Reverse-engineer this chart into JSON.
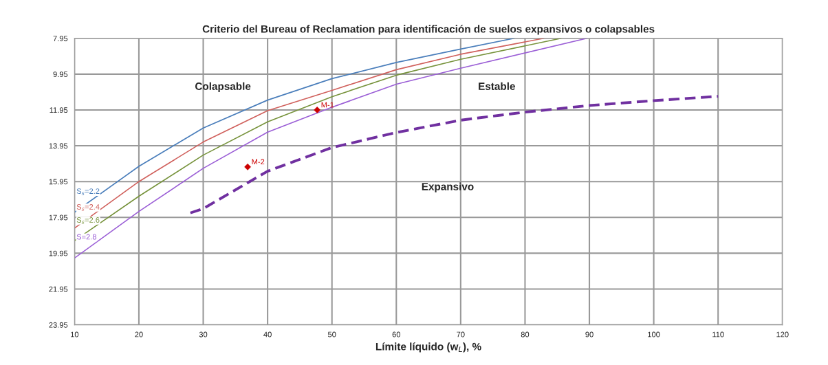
{
  "chart_data": {
    "type": "line",
    "title": "Criterio del Bureau of Reclamation para identificación de suelos expansivos o colapsables",
    "xlabel": "Límite líquido (w$_{L}$), %",
    "xlim": [
      10,
      120
    ],
    "xticks": [
      10,
      20,
      30,
      40,
      50,
      60,
      70,
      80,
      90,
      100,
      110,
      120
    ],
    "ylim": [
      23.95,
      7.95
    ],
    "yticks": [
      7.95,
      9.95,
      11.95,
      13.95,
      15.95,
      17.95,
      19.95,
      21.95,
      23.95
    ],
    "grid": true,
    "legend": false,
    "marker": "none",
    "series": [
      {
        "name": "S$_{s}$=2.2",
        "color": "#4a7ebb",
        "line_style": "solid",
        "x": [
          10,
          20,
          30,
          40,
          50,
          60,
          70,
          78.3
        ],
        "values": [
          17.66,
          15.1,
          12.96,
          11.4,
          10.2,
          9.3,
          8.55,
          7.95
        ]
      },
      {
        "name": "S$_{s}$=2.4",
        "color": "#d0605c",
        "line_style": "solid",
        "x": [
          10,
          20,
          30,
          40,
          50,
          60,
          70,
          82.9
        ],
        "values": [
          18.55,
          15.95,
          13.74,
          11.99,
          10.86,
          9.7,
          8.84,
          7.95
        ]
      },
      {
        "name": "S$_{s}$=2.6",
        "color": "#77933c",
        "line_style": "solid",
        "x": [
          10,
          20,
          30,
          40,
          50,
          60,
          70,
          85.6
        ],
        "values": [
          19.25,
          16.77,
          14.47,
          12.61,
          11.21,
          10.01,
          9.12,
          7.95
        ]
      },
      {
        "name": "S=2.8",
        "color": "#9b5fd6",
        "line_style": "solid",
        "x": [
          10,
          20,
          30,
          40,
          50,
          60,
          70,
          89.6
        ],
        "values": [
          20.22,
          17.62,
          15.21,
          13.19,
          11.8,
          10.51,
          9.62,
          7.95
        ]
      },
      {
        "color": "#7030a0",
        "line_style": "dashed",
        "x": [
          28,
          30,
          40,
          50,
          60,
          70,
          80,
          90,
          100,
          110
        ],
        "values": [
          17.7,
          17.46,
          15.37,
          14.05,
          13.21,
          12.52,
          12.07,
          11.7,
          11.43,
          11.19
        ]
      },
      {
        "type": "scatter",
        "marker": "diamond",
        "color": "#cc0000",
        "x": [
          47.7,
          36.9
        ],
        "values": [
          11.95,
          15.13
        ]
      }
    ],
    "annotations": [
      {
        "text": "M-1",
        "x": 47.7,
        "y": 11.95
      },
      {
        "text": "M-2",
        "x": 36.9,
        "y": 15.13
      },
      "Colapsable",
      "Estable",
      "Expansivo"
    ]
  }
}
